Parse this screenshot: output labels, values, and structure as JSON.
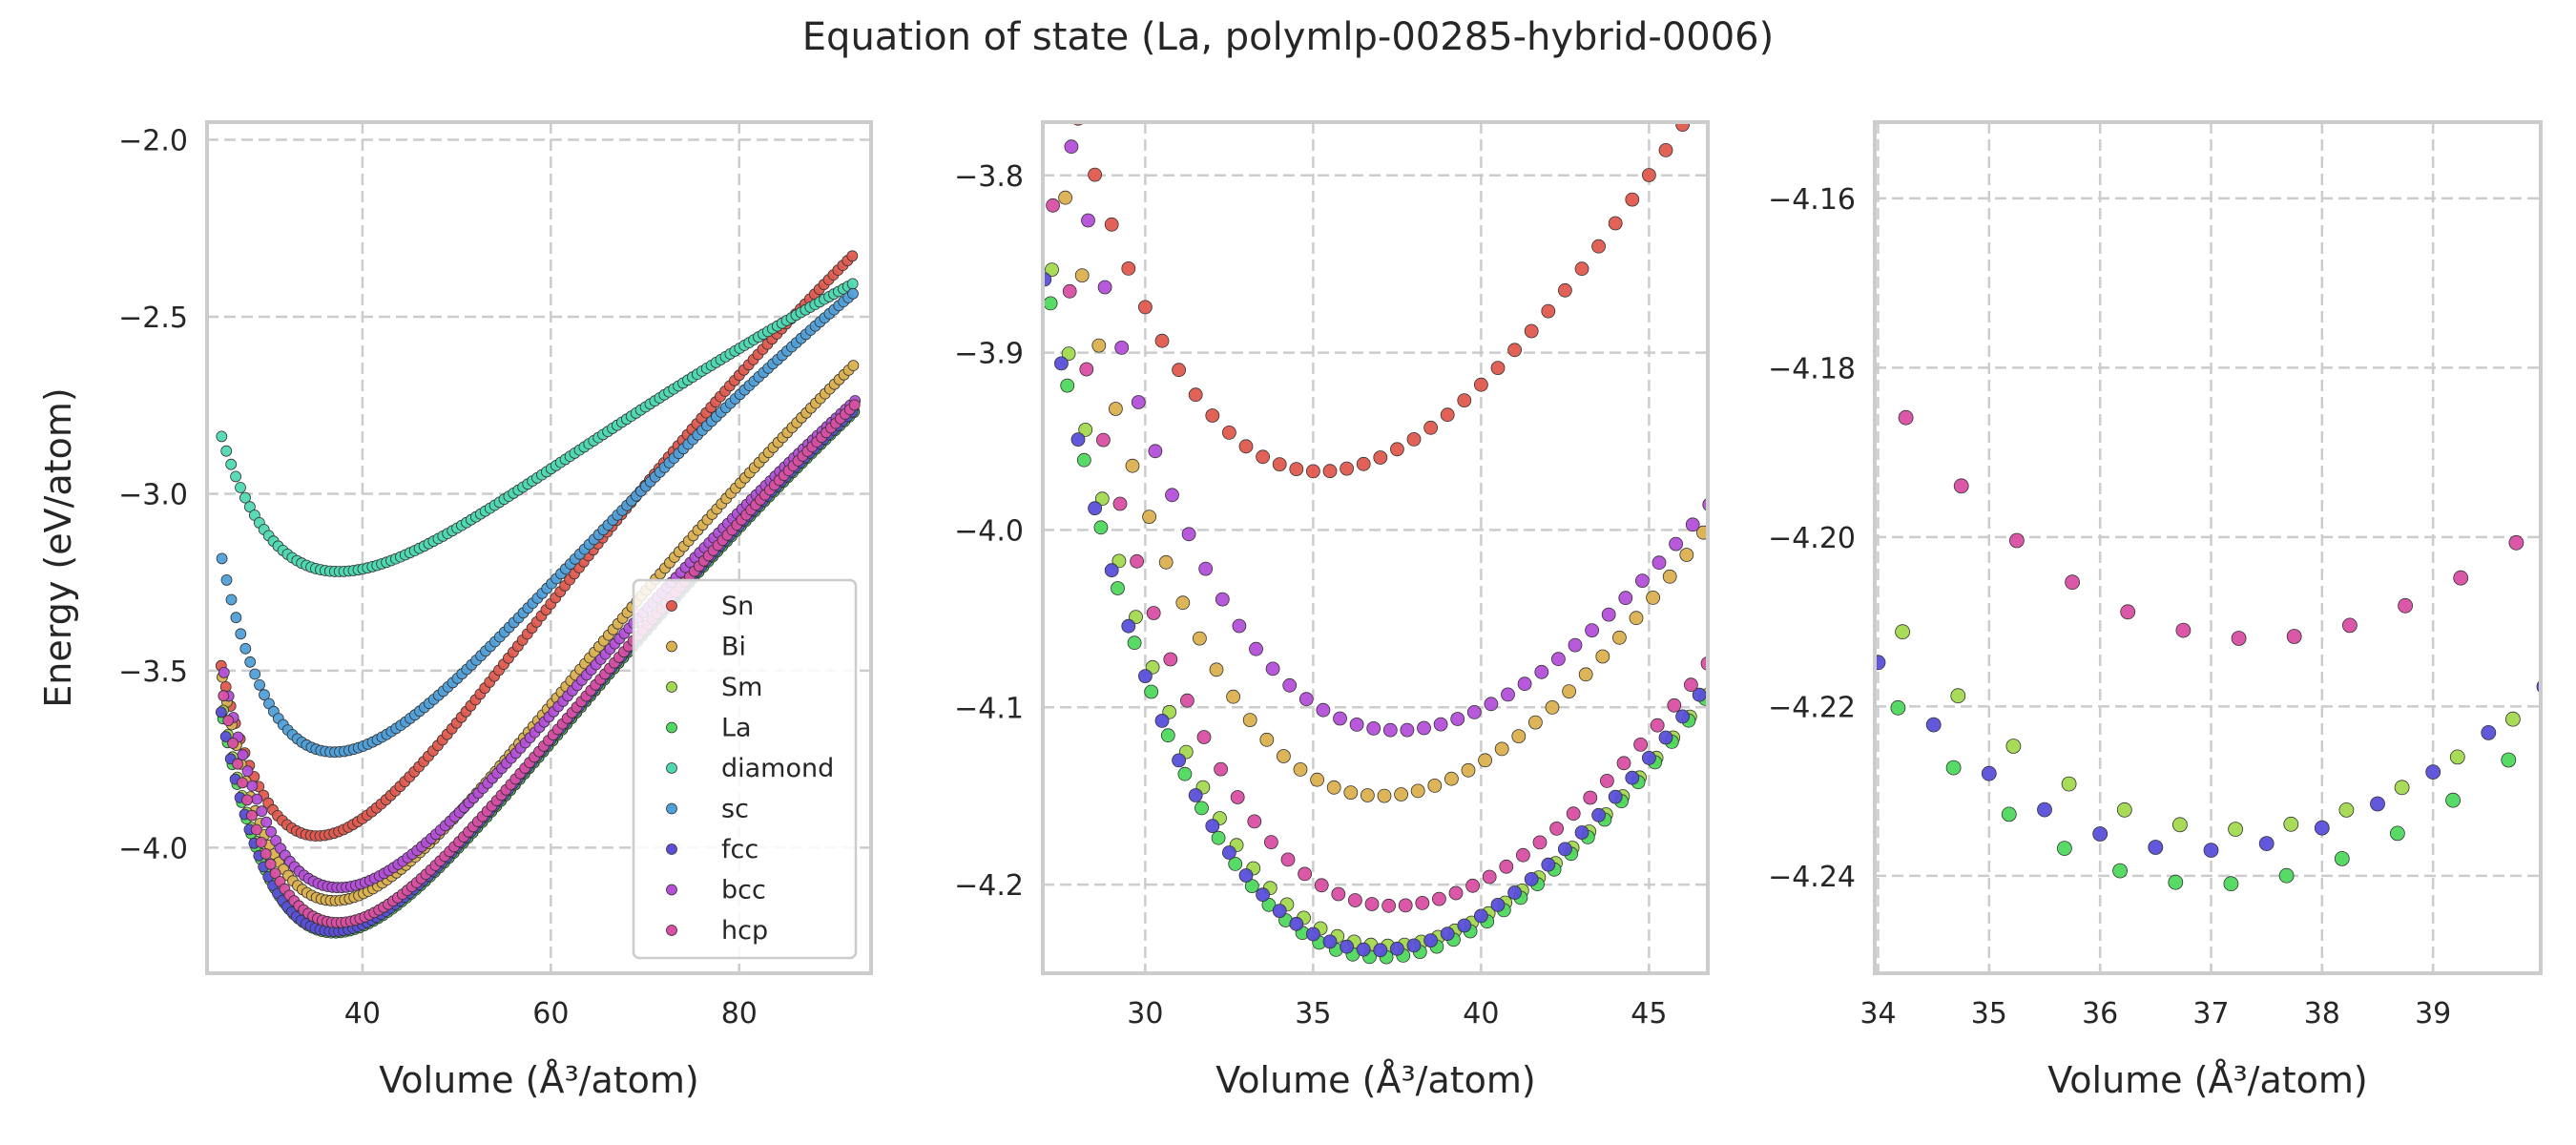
{
  "chart_data": {
    "type": "scatter",
    "title": "Equation of state (La, polymlp-00285-hybrid-0006)",
    "ylabel": "Energy (eV/atom)",
    "xlabel": "Volume (Å³/atom)",
    "grid": true,
    "legend": {
      "placement": "lower-right of left panel",
      "entries": [
        "Sn",
        "Bi",
        "Sm",
        "La",
        "diamond",
        "sc",
        "fcc",
        "bcc",
        "hcp"
      ]
    },
    "series": [
      {
        "name": "Sn",
        "color": "#e05a4f",
        "E0": -3.967,
        "V0": 35.2,
        "B": 0.185
      },
      {
        "name": "Bi",
        "color": "#dbb14f",
        "E0": -4.15,
        "V0": 37.0,
        "B": 0.175
      },
      {
        "name": "Sm",
        "color": "#a3d94f",
        "E0": -4.2345,
        "V0": 37.2,
        "B": 0.17
      },
      {
        "name": "La",
        "color": "#4fd95e",
        "E0": -4.241,
        "V0": 37.0,
        "B": 0.17
      },
      {
        "name": "diamond",
        "color": "#4fd9b2",
        "E0": -3.22,
        "V0": 37.5,
        "B": 0.095
      },
      {
        "name": "sc",
        "color": "#4f9fd9",
        "E0": -3.73,
        "V0": 37.0,
        "B": 0.15
      },
      {
        "name": "fcc",
        "color": "#5a4fd9",
        "E0": -4.237,
        "V0": 36.9,
        "B": 0.17
      },
      {
        "name": "bcc",
        "color": "#b44fd9",
        "E0": -4.113,
        "V0": 37.5,
        "B": 0.16
      },
      {
        "name": "hcp",
        "color": "#d94fa3",
        "E0": -4.212,
        "V0": 37.4,
        "B": 0.17
      }
    ],
    "volume_range": [
      25.0,
      92.0
    ],
    "panels": [
      {
        "name": "full",
        "xlim": [
          23.5,
          94.0
        ],
        "ylim": [
          -4.355,
          -1.95
        ],
        "xticks": [
          40,
          60,
          80
        ],
        "yticks": [
          -2.0,
          -2.5,
          -3.0,
          -3.5,
          -4.0
        ],
        "xtick_labels": [
          "40",
          "60",
          "80"
        ],
        "ytick_labels": [
          "−2.0",
          "−2.5",
          "−3.0",
          "−3.5",
          "−4.0"
        ]
      },
      {
        "name": "zoom-1",
        "xlim": [
          26.95,
          46.75
        ],
        "ylim": [
          -4.25,
          -3.77
        ],
        "xticks": [
          30,
          35,
          40,
          45
        ],
        "yticks": [
          -3.8,
          -3.9,
          -4.0,
          -4.1,
          -4.2
        ],
        "xtick_labels": [
          "30",
          "35",
          "40",
          "45"
        ],
        "ytick_labels": [
          "−3.8",
          "−3.9",
          "−4.0",
          "−4.1",
          "−4.2"
        ]
      },
      {
        "name": "zoom-2",
        "xlim": [
          33.97,
          39.97
        ],
        "ylim": [
          -4.2515,
          -4.151
        ],
        "xticks": [
          34,
          35,
          36,
          37,
          38,
          39
        ],
        "yticks": [
          -4.16,
          -4.18,
          -4.2,
          -4.22,
          -4.24
        ],
        "xtick_labels": [
          "34",
          "35",
          "36",
          "37",
          "38",
          "39"
        ],
        "ytick_labels": [
          "−4.16",
          "−4.18",
          "−4.20",
          "−4.22",
          "−4.24"
        ]
      }
    ]
  }
}
